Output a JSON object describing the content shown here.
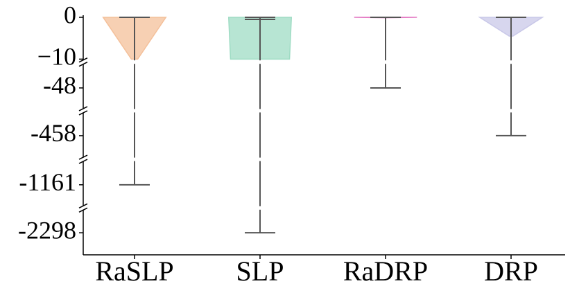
{
  "chart_data": {
    "type": "violin",
    "categories": [
      "RaSLP",
      "SLP",
      "RaDRP",
      "DRP"
    ],
    "values": [
      -1161,
      -2298,
      -48,
      -458
    ],
    "max": [
      0,
      0,
      0,
      0
    ],
    "medians": [
      0,
      -0.5,
      0,
      0
    ],
    "colors": [
      "#f4c09a",
      "#9fdcc4",
      "#e377c2",
      "#c9c8e8"
    ],
    "violins": [
      {
        "y": [
          0,
          -10
        ],
        "width": [
          0.5,
          0.05
        ]
      },
      {
        "y": [
          0,
          -10
        ],
        "width": [
          0.5,
          0.47
        ]
      },
      {
        "y": [
          0,
          -0.1
        ],
        "width": [
          0.5,
          0.0
        ]
      },
      {
        "y": [
          0,
          -4.5
        ],
        "width": [
          0.5,
          0.03
        ]
      }
    ],
    "y_segments": [
      {
        "ylim": [
          -10.3,
          0.5
        ]
      },
      {
        "ylim": [
          -55,
          -40
        ]
      },
      {
        "ylim": [
          -475,
          -440
        ]
      },
      {
        "ylim": [
          -1180,
          -1140
        ]
      },
      {
        "ylim": [
          -2320,
          -2275
        ]
      }
    ],
    "yticks": [
      0,
      {
        "value": -10,
        "label": "−10"
      },
      -48,
      -458,
      -1161,
      -2298
    ]
  }
}
